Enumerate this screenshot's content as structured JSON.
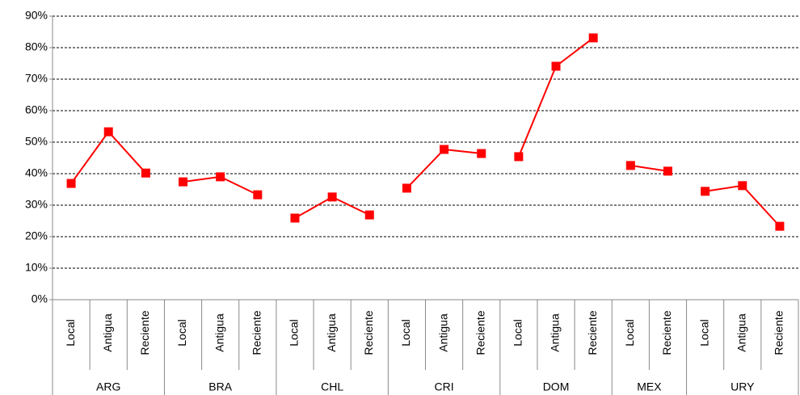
{
  "chart_data": {
    "type": "line",
    "color": "#ff0000",
    "grid": true,
    "ylim": [
      0,
      90
    ],
    "yticks": [
      {
        "value": 0,
        "label": "0%"
      },
      {
        "value": 10,
        "label": "10%"
      },
      {
        "value": 20,
        "label": "20%"
      },
      {
        "value": 30,
        "label": "30%"
      },
      {
        "value": 40,
        "label": "40%"
      },
      {
        "value": 50,
        "label": "50%"
      },
      {
        "value": 60,
        "label": "60%"
      },
      {
        "value": 70,
        "label": "70%"
      },
      {
        "value": 80,
        "label": "80%"
      },
      {
        "value": 90,
        "label": "90%"
      }
    ],
    "groups": [
      {
        "name": "ARG",
        "categories": [
          "Local",
          "Antigua",
          "Reciente"
        ],
        "values": [
          36.9,
          53.3,
          40.2
        ]
      },
      {
        "name": "BRA",
        "categories": [
          "Local",
          "Antigua",
          "Reciente"
        ],
        "values": [
          37.4,
          39.0,
          33.3
        ]
      },
      {
        "name": "CHL",
        "categories": [
          "Local",
          "Antigua",
          "Reciente"
        ],
        "values": [
          25.9,
          32.6,
          26.9
        ]
      },
      {
        "name": "CRI",
        "categories": [
          "Local",
          "Antigua",
          "Reciente"
        ],
        "values": [
          35.4,
          47.7,
          46.4
        ]
      },
      {
        "name": "DOM",
        "categories": [
          "Local",
          "Antigua",
          "Reciente"
        ],
        "values": [
          45.4,
          74.1,
          83.1
        ]
      },
      {
        "name": "MEX",
        "categories": [
          "Local",
          "Reciente"
        ],
        "values": [
          42.6,
          40.8
        ]
      },
      {
        "name": "URY",
        "categories": [
          "Local",
          "Antigua",
          "Reciente"
        ],
        "values": [
          34.4,
          36.2,
          23.3
        ]
      }
    ]
  }
}
